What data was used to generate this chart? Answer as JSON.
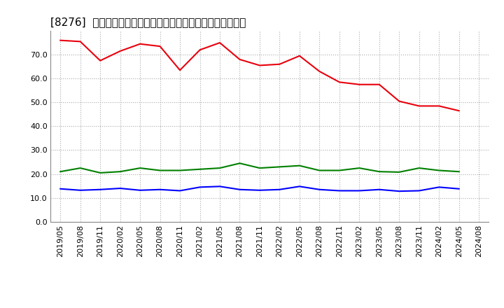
{
  "title": "[8276]  売上債権回転率、買入債務回転率、在庫回転率の推移",
  "x_labels": [
    "2019/05",
    "2019/08",
    "2019/11",
    "2020/02",
    "2020/05",
    "2020/08",
    "2020/11",
    "2021/02",
    "2021/05",
    "2021/08",
    "2021/11",
    "2022/02",
    "2022/05",
    "2022/08",
    "2022/11",
    "2023/02",
    "2023/05",
    "2023/08",
    "2023/11",
    "2024/02",
    "2024/05",
    "2024/08"
  ],
  "uriten": [
    76.0,
    75.5,
    67.5,
    71.5,
    74.5,
    73.5,
    63.5,
    72.0,
    75.0,
    68.0,
    65.5,
    66.0,
    69.5,
    63.0,
    58.5,
    57.5,
    57.5,
    50.5,
    48.5,
    48.5,
    46.5,
    null
  ],
  "kaiten": [
    13.8,
    13.2,
    13.5,
    14.0,
    13.2,
    13.5,
    13.0,
    14.5,
    14.8,
    13.5,
    13.2,
    13.5,
    14.8,
    13.5,
    13.0,
    13.0,
    13.5,
    12.8,
    13.0,
    14.5,
    13.8,
    null
  ],
  "zaiko": [
    21.0,
    22.5,
    20.5,
    21.0,
    22.5,
    21.5,
    21.5,
    22.0,
    22.5,
    24.5,
    22.5,
    23.0,
    23.5,
    21.5,
    21.5,
    22.5,
    21.0,
    20.8,
    22.5,
    21.5,
    21.0,
    null
  ],
  "color_red": "#e8000d",
  "color_blue": "#0000ff",
  "color_green": "#008000",
  "ylim": [
    0,
    80
  ],
  "yticks": [
    0.0,
    10.0,
    20.0,
    30.0,
    40.0,
    50.0,
    60.0,
    70.0
  ],
  "legend_red": "売上債権回転率",
  "legend_blue": "買入債務回転率",
  "legend_green": "在庫回転率",
  "bg_color": "#ffffff",
  "plot_bg_color": "#ffffff",
  "grid_color": "#aaaaaa",
  "line_width": 1.5,
  "title_fontsize": 11,
  "tick_fontsize": 8,
  "legend_fontsize": 9
}
